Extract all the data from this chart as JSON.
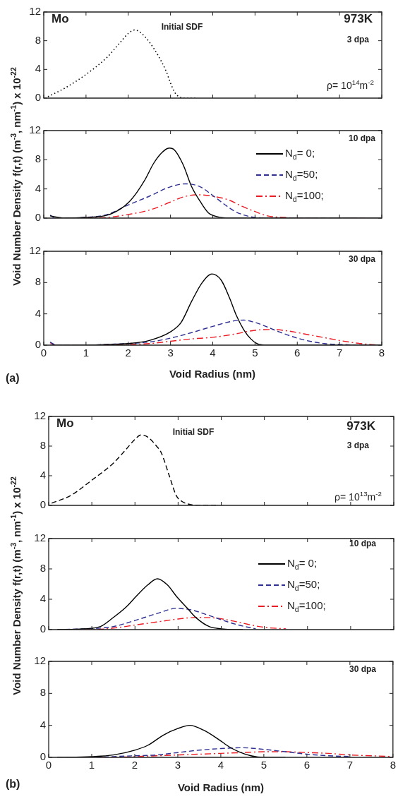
{
  "chart_data": [
    {
      "type": "line",
      "annotations": [
        "Mo",
        "Initial SDF",
        "973K",
        "3 dpa",
        "ρ= 10$^{14}$m$^{-2}$"
      ],
      "xlim": [
        0,
        8
      ],
      "xticks": [
        0,
        1,
        2,
        3,
        4,
        5,
        6,
        7,
        8
      ],
      "ylim": [
        0,
        12
      ],
      "yticks": [
        0,
        4,
        8,
        12
      ],
      "tick_labels": "y",
      "grid": false,
      "legend": false,
      "marker": "none",
      "series": [
        {
          "color": "#000000",
          "line_style": "dotted",
          "x": [
            0.1,
            0.5,
            1.0,
            1.5,
            1.8,
            2.0,
            2.15,
            2.3,
            2.5,
            2.7,
            2.9,
            3.0,
            3.1,
            3.2,
            3.4,
            3.6
          ],
          "values": [
            0.2,
            1.4,
            3.3,
            5.7,
            7.7,
            9.0,
            9.5,
            9.1,
            7.8,
            6.0,
            3.7,
            2.1,
            0.8,
            0.2,
            0,
            0
          ]
        }
      ]
    },
    {
      "type": "line",
      "ylabel": "Void Number  Density  f(r,t) (m$^{-3}$, nm$^{-1}$) x 10$^{-22}$",
      "annotations": [
        "10 dpa"
      ],
      "xlim": [
        0,
        8
      ],
      "xticks": [
        0,
        1,
        2,
        3,
        4,
        5,
        6,
        7,
        8
      ],
      "ylim": [
        0,
        12
      ],
      "yticks": [
        0,
        4,
        8,
        12
      ],
      "tick_labels": "y",
      "grid": false,
      "legend": "right",
      "marker": "none",
      "series": [
        {
          "name": "N$_{d}$= 0;",
          "color": "#000000",
          "line_style": "solid",
          "x": [
            0.15,
            0.5,
            1.0,
            1.5,
            1.8,
            2.0,
            2.2,
            2.4,
            2.6,
            2.8,
            2.97,
            3.1,
            3.3,
            3.5,
            3.7,
            3.9,
            4.1,
            4.4,
            8
          ],
          "values": [
            0.3,
            0,
            0.1,
            0.4,
            1.2,
            2.1,
            3.5,
            5.3,
            7.5,
            9.0,
            9.6,
            9.3,
            7.3,
            4.3,
            2.3,
            0.7,
            0.2,
            0,
            0
          ]
        },
        {
          "name": "N$_{d}$=50;",
          "color": "#2e3192",
          "line_style": "dashed",
          "x": [
            0.15,
            0.3,
            1.0,
            1.5,
            2.0,
            2.5,
            3.0,
            3.35,
            3.7,
            4.0,
            4.25,
            4.5,
            4.75,
            5.0,
            5.5,
            7.5
          ],
          "values": [
            0.4,
            0,
            0.1,
            0.5,
            1.8,
            3.0,
            4.3,
            4.7,
            4.3,
            3.1,
            2.0,
            1.0,
            0.4,
            0.1,
            0,
            0
          ]
        },
        {
          "name": "N$_{d}$=100;",
          "color": "#ed1c24",
          "line_style": "dashdot",
          "x": [
            1.0,
            1.5,
            2.0,
            2.5,
            3.0,
            3.3,
            3.65,
            4.0,
            4.37,
            4.7,
            5.0,
            5.3,
            5.7,
            6.0,
            7.6
          ],
          "values": [
            0,
            0.1,
            0.5,
            1.1,
            2.2,
            2.9,
            3.2,
            3.0,
            2.5,
            1.6,
            0.9,
            0.3,
            0.1,
            0,
            0
          ]
        }
      ]
    },
    {
      "type": "line",
      "xlabel": "Void Radius (nm)",
      "annotations": [
        "30 dpa",
        "(a)"
      ],
      "xlim": [
        0,
        8
      ],
      "xticks": [
        0,
        1,
        2,
        3,
        4,
        5,
        6,
        7,
        8
      ],
      "ylim": [
        0,
        12
      ],
      "yticks": [
        0,
        4,
        8,
        12
      ],
      "grid": false,
      "legend": false,
      "marker": "none",
      "series": [
        {
          "color": "#000000",
          "line_style": "solid",
          "x": [
            0.15,
            1.0,
            1.5,
            2.0,
            2.5,
            3.0,
            3.25,
            3.5,
            3.75,
            3.98,
            4.2,
            4.4,
            4.55,
            4.73,
            4.9,
            5.05,
            5.3,
            8
          ],
          "values": [
            0,
            0,
            0.1,
            0.2,
            0.6,
            1.7,
            2.9,
            5.6,
            8.0,
            9.1,
            8.3,
            6.0,
            3.9,
            2.0,
            0.8,
            0.2,
            0,
            0
          ]
        },
        {
          "color": "#2e3192",
          "line_style": "dashed",
          "x": [
            0.15,
            0.3,
            1.0,
            1.5,
            2.0,
            2.5,
            3.0,
            3.5,
            4.0,
            4.5,
            4.73,
            5.0,
            5.3,
            5.57,
            6.0,
            6.3,
            6.65,
            7.0,
            7.5,
            8
          ],
          "values": [
            0.4,
            0,
            0,
            0.1,
            0.2,
            0.4,
            0.9,
            1.6,
            2.4,
            3.1,
            3.2,
            2.9,
            2.3,
            1.7,
            0.9,
            0.5,
            0.2,
            0.1,
            0,
            0
          ]
        },
        {
          "color": "#ed1c24",
          "line_style": "dashdot",
          "x": [
            0.15,
            0.3,
            1.0,
            2.0,
            2.5,
            3.0,
            3.5,
            4.0,
            4.5,
            5.0,
            5.4,
            5.8,
            6.2,
            6.6,
            7.0,
            7.5,
            8
          ],
          "values": [
            0.3,
            0,
            0,
            0.1,
            0.2,
            0.5,
            0.8,
            1.0,
            1.4,
            1.9,
            2.0,
            1.8,
            1.4,
            1.0,
            0.6,
            0.2,
            0
          ]
        }
      ]
    },
    {
      "type": "line",
      "annotations": [
        "Mo",
        "Initial SDF",
        "973K",
        "3 dpa",
        "ρ= 10$^{13}$m$^{-2}$"
      ],
      "xlim": [
        0,
        8
      ],
      "xticks": [
        0,
        1,
        2,
        3,
        4,
        5,
        6,
        7,
        8
      ],
      "ylim": [
        0,
        12
      ],
      "yticks": [
        0,
        4,
        8,
        12
      ],
      "tick_labels": "y",
      "grid": false,
      "legend": false,
      "marker": "none",
      "series": [
        {
          "color": "#000000",
          "line_style": "dashed",
          "x": [
            0.07,
            0.5,
            1.0,
            1.5,
            1.8,
            2.0,
            2.14,
            2.3,
            2.5,
            2.61,
            2.79,
            2.96,
            3.1,
            3.3,
            3.5,
            3.9
          ],
          "values": [
            0.3,
            1.3,
            3.4,
            5.7,
            7.6,
            8.9,
            9.5,
            9.2,
            8.0,
            7.1,
            4.1,
            1.3,
            0.5,
            0.1,
            0,
            0
          ]
        }
      ]
    },
    {
      "type": "line",
      "ylabel": "Void Number  Density  f(r,t) (m$^{-3}$, nm$^{-1}$) x 10$^{-22}$",
      "annotations": [
        "10 dpa"
      ],
      "xlim": [
        0,
        8
      ],
      "xticks": [
        0,
        1,
        2,
        3,
        4,
        5,
        6,
        7,
        8
      ],
      "ylim": [
        0,
        12
      ],
      "yticks": [
        0,
        4,
        8,
        12
      ],
      "tick_labels": "y",
      "grid": false,
      "legend": "right",
      "marker": "none",
      "series": [
        {
          "name": "N$_{d}$= 0;",
          "color": "#000000",
          "line_style": "solid",
          "x": [
            0.2,
            0.8,
            1.2,
            1.5,
            1.8,
            2.03,
            2.3,
            2.52,
            2.75,
            2.96,
            3.2,
            3.43,
            3.72,
            4.0,
            4.3,
            4.5
          ],
          "values": [
            0,
            0.1,
            0.4,
            1.6,
            3.0,
            4.4,
            5.9,
            6.7,
            5.9,
            4.4,
            2.9,
            1.5,
            0.4,
            0.1,
            0,
            0
          ]
        },
        {
          "name": "N$_{d}$=50;",
          "color": "#2e3192",
          "line_style": "dashed",
          "x": [
            0.2,
            0.8,
            1.2,
            1.5,
            2.0,
            2.5,
            2.96,
            3.3,
            3.7,
            4.0,
            4.4,
            4.8
          ],
          "values": [
            0,
            0.1,
            0.2,
            0.4,
            1.2,
            2.1,
            2.8,
            2.6,
            1.9,
            1.3,
            0.6,
            0.1
          ]
        },
        {
          "name": "N$_{d}$=100;",
          "color": "#ed1c24",
          "line_style": "dashdot",
          "x": [
            0.2,
            1.0,
            1.5,
            2.0,
            2.5,
            3.0,
            3.43,
            3.9,
            4.3,
            4.7,
            5.0,
            5.5
          ],
          "values": [
            0,
            0,
            0.2,
            0.6,
            1.0,
            1.4,
            1.6,
            1.5,
            1.1,
            0.6,
            0.3,
            0.1
          ]
        }
      ]
    },
    {
      "type": "line",
      "xlabel": "Void Radius  (nm)",
      "annotations": [
        "30 dpa",
        "(b)"
      ],
      "xlim": [
        0,
        8
      ],
      "xticks": [
        0,
        1,
        2,
        3,
        4,
        5,
        6,
        7,
        8
      ],
      "ylim": [
        0,
        12
      ],
      "yticks": [
        0,
        4,
        8,
        12
      ],
      "grid": false,
      "legend": false,
      "marker": "none",
      "series": [
        {
          "color": "#000000",
          "line_style": "solid",
          "x": [
            0.2,
            1.0,
            1.5,
            2.0,
            2.3,
            2.67,
            3.0,
            3.28,
            3.6,
            3.96,
            4.2,
            4.42,
            4.7,
            5.0,
            5.5
          ],
          "values": [
            0,
            0.1,
            0.3,
            0.9,
            1.5,
            2.8,
            3.6,
            4.0,
            3.4,
            2.2,
            1.3,
            0.7,
            0.2,
            0,
            0
          ]
        },
        {
          "color": "#2e3192",
          "line_style": "dashed",
          "x": [
            0.2,
            1.0,
            1.5,
            2.0,
            2.5,
            3.0,
            3.5,
            4.0,
            4.5,
            5.0,
            5.5,
            6.0,
            6.5,
            7.0
          ],
          "values": [
            0,
            0,
            0.1,
            0.2,
            0.3,
            0.6,
            0.9,
            1.1,
            1.2,
            1.0,
            0.7,
            0.4,
            0.2,
            0.1
          ]
        },
        {
          "color": "#ed1c24",
          "line_style": "dashdot",
          "x": [
            0.2,
            1.5,
            2.0,
            2.5,
            3.0,
            3.5,
            4.0,
            4.5,
            5.0,
            5.5,
            6.0,
            6.5,
            7.0,
            7.5,
            8
          ],
          "values": [
            0,
            0,
            0.1,
            0.2,
            0.3,
            0.4,
            0.5,
            0.6,
            0.7,
            0.7,
            0.6,
            0.5,
            0.3,
            0.2,
            0.1
          ]
        }
      ]
    }
  ]
}
